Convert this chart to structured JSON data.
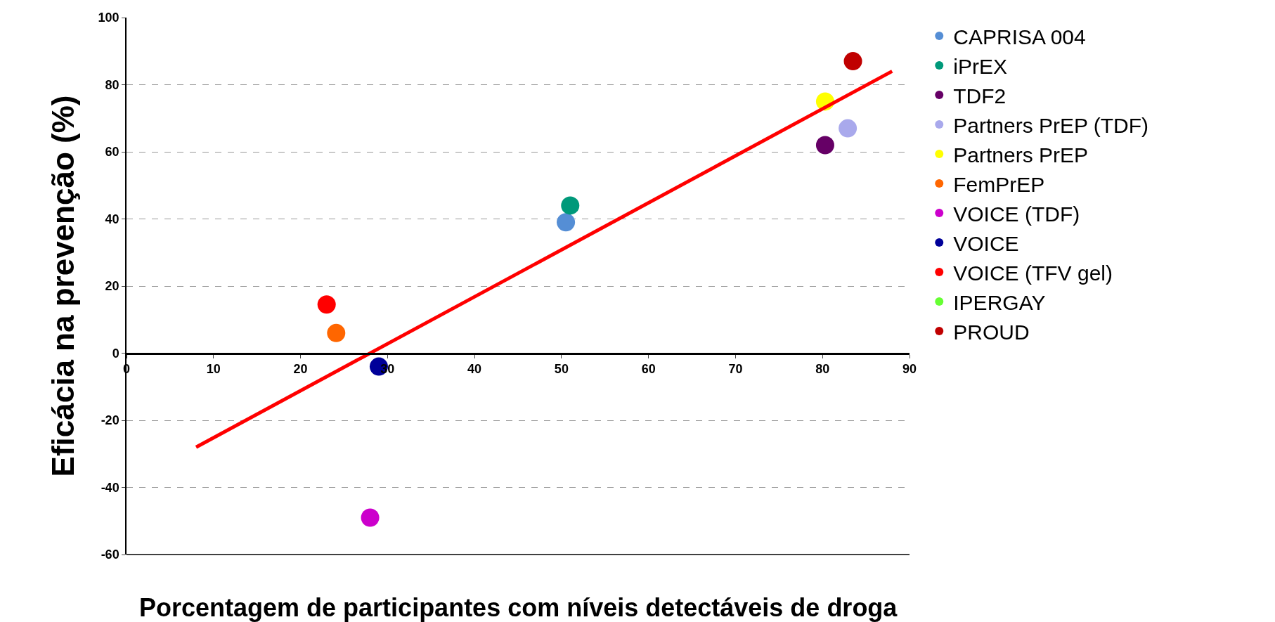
{
  "chart_data": {
    "type": "scatter",
    "xlabel": "Porcentagem de participantes com níveis detectáveis de droga",
    "ylabel": "Eficácia na prevenção (%)",
    "xlim": [
      0,
      90
    ],
    "xticks": [
      0,
      10,
      20,
      30,
      40,
      50,
      60,
      70,
      80,
      90
    ],
    "ylim": [
      -60,
      100
    ],
    "yticks": [
      -60,
      -40,
      -20,
      0,
      20,
      40,
      60,
      80,
      100
    ],
    "grid": "y",
    "legend": "top right",
    "marker": "circle",
    "series": [
      {
        "name": "CAPRISA 004",
        "color": "#558ed5",
        "x": [
          50.5
        ],
        "values": [
          39
        ]
      },
      {
        "name": "iPrEX",
        "color": "#00997a",
        "x": [
          51
        ],
        "values": [
          44
        ]
      },
      {
        "name": "TDF2",
        "color": "#660066",
        "x": [
          80.3
        ],
        "values": [
          62
        ]
      },
      {
        "name": "Partners PrEP (TDF)",
        "color": "#a9a9ec",
        "x": [
          82.9
        ],
        "values": [
          67
        ]
      },
      {
        "name": "Partners PrEP",
        "color": "#ffff00",
        "x": [
          80.3
        ],
        "values": [
          75
        ]
      },
      {
        "name": "FemPrEP",
        "color": "#ff6600",
        "x": [
          24.1
        ],
        "values": [
          6
        ]
      },
      {
        "name": "VOICE (TDF)",
        "color": "#cc00cc",
        "x": [
          28
        ],
        "values": [
          -49
        ]
      },
      {
        "name": "VOICE",
        "color": "#000099",
        "x": [
          29
        ],
        "values": [
          -4
        ]
      },
      {
        "name": "VOICE (TFV gel)",
        "color": "#ff0000",
        "x": [
          23
        ],
        "values": [
          14.5
        ]
      },
      {
        "name": "IPERGAY",
        "color": "#66ff33",
        "x": [
          null
        ],
        "values": [
          null
        ]
      },
      {
        "name": "PROUD",
        "color": "#c00000",
        "x": [
          83.5
        ],
        "values": [
          87
        ]
      },
      {
        "type": "line",
        "marker": "none",
        "color": "#ff0000",
        "x": [
          8,
          88
        ],
        "values": [
          -28,
          84
        ]
      }
    ]
  }
}
